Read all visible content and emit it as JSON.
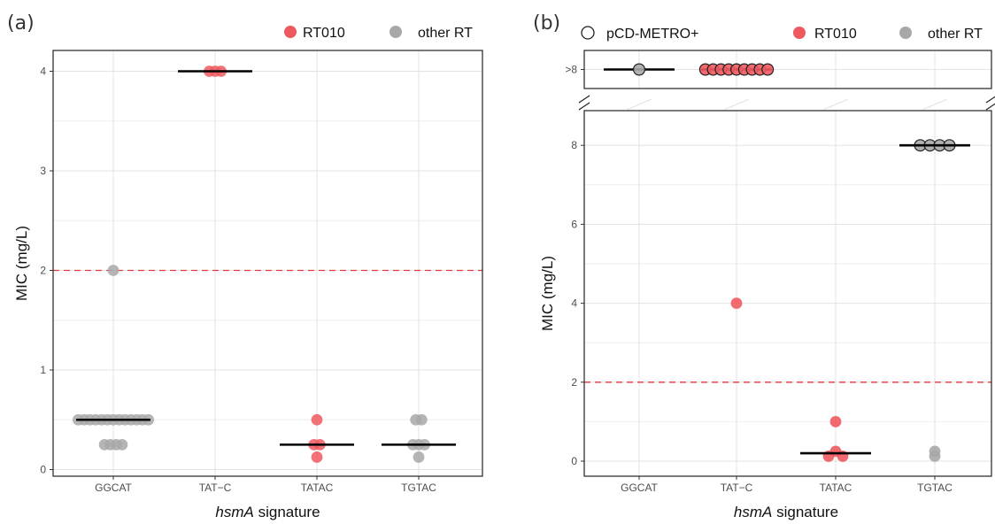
{
  "chart_data": [
    {
      "panel": "(a)",
      "type": "scatter",
      "xlabel_italic": "hsmA",
      "xlabel_rest": " signature",
      "ylabel": "MIC (mg/L)",
      "categories": [
        "GGCAT",
        "TAT−C",
        "TATAC",
        "TGTAC"
      ],
      "yticks": [
        0,
        1,
        2,
        3,
        4
      ],
      "ylim": [
        -0.05,
        4.2
      ],
      "threshold": 2,
      "legend": [
        {
          "label": "RT010",
          "color": "#ee5a60"
        },
        {
          "label": "other RT",
          "color": "#a8a8a8"
        }
      ],
      "medians": [
        0.5,
        4,
        0.25,
        0.25
      ],
      "points": [
        {
          "cat": 0,
          "y": 0.5,
          "group": "other RT"
        },
        {
          "cat": 0,
          "y": 0.5,
          "group": "other RT"
        },
        {
          "cat": 0,
          "y": 0.5,
          "group": "other RT"
        },
        {
          "cat": 0,
          "y": 0.5,
          "group": "other RT"
        },
        {
          "cat": 0,
          "y": 0.5,
          "group": "other RT"
        },
        {
          "cat": 0,
          "y": 0.5,
          "group": "other RT"
        },
        {
          "cat": 0,
          "y": 0.5,
          "group": "other RT"
        },
        {
          "cat": 0,
          "y": 0.5,
          "group": "other RT"
        },
        {
          "cat": 0,
          "y": 0.5,
          "group": "other RT"
        },
        {
          "cat": 0,
          "y": 0.5,
          "group": "other RT"
        },
        {
          "cat": 0,
          "y": 0.5,
          "group": "other RT"
        },
        {
          "cat": 0,
          "y": 0.5,
          "group": "other RT"
        },
        {
          "cat": 0,
          "y": 0.5,
          "group": "other RT"
        },
        {
          "cat": 0,
          "y": 0.25,
          "group": "other RT"
        },
        {
          "cat": 0,
          "y": 0.25,
          "group": "other RT"
        },
        {
          "cat": 0,
          "y": 0.25,
          "group": "other RT"
        },
        {
          "cat": 0,
          "y": 0.25,
          "group": "other RT"
        },
        {
          "cat": 0,
          "y": 2,
          "group": "other RT"
        },
        {
          "cat": 1,
          "y": 4,
          "group": "RT010"
        },
        {
          "cat": 1,
          "y": 4,
          "group": "RT010"
        },
        {
          "cat": 1,
          "y": 4,
          "group": "RT010"
        },
        {
          "cat": 2,
          "y": 0.5,
          "group": "RT010"
        },
        {
          "cat": 2,
          "y": 0.25,
          "group": "RT010"
        },
        {
          "cat": 2,
          "y": 0.25,
          "group": "RT010"
        },
        {
          "cat": 2,
          "y": 0.125,
          "group": "RT010"
        },
        {
          "cat": 3,
          "y": 0.5,
          "group": "other RT"
        },
        {
          "cat": 3,
          "y": 0.5,
          "group": "other RT"
        },
        {
          "cat": 3,
          "y": 0.25,
          "group": "other RT"
        },
        {
          "cat": 3,
          "y": 0.25,
          "group": "other RT"
        },
        {
          "cat": 3,
          "y": 0.25,
          "group": "other RT"
        },
        {
          "cat": 3,
          "y": 0.125,
          "group": "other RT"
        }
      ]
    },
    {
      "panel": "(b)",
      "type": "scatter",
      "xlabel_italic": "hsmA",
      "xlabel_rest": " signature",
      "ylabel": "MIC (mg/L)",
      "categories": [
        "GGCAT",
        "TAT−C",
        "TATAC",
        "TGTAC"
      ],
      "yticks": [
        0,
        2,
        4,
        6,
        8
      ],
      "ylim": [
        -0.3,
        8.8
      ],
      "broken_axis_top_label": ">8",
      "threshold": 2,
      "legend": [
        {
          "label": "pCD-METRO+",
          "color": "#ffffff",
          "outline": "#222222"
        },
        {
          "label": "RT010",
          "color": "#ee5a60"
        },
        {
          "label": "other RT",
          "color": "#a8a8a8"
        }
      ],
      "top_medians": [
        ">8",
        ">8"
      ],
      "medians": [
        null,
        null,
        0.2,
        8
      ],
      "top_points": [
        {
          "cat": 0,
          "group": "other RT",
          "metro": true
        },
        {
          "cat": 1,
          "group": "RT010",
          "metro": true
        },
        {
          "cat": 1,
          "group": "RT010",
          "metro": true
        },
        {
          "cat": 1,
          "group": "RT010",
          "metro": true
        },
        {
          "cat": 1,
          "group": "RT010",
          "metro": true
        },
        {
          "cat": 1,
          "group": "RT010",
          "metro": true
        },
        {
          "cat": 1,
          "group": "RT010",
          "metro": true
        },
        {
          "cat": 1,
          "group": "RT010",
          "metro": true
        },
        {
          "cat": 1,
          "group": "RT010",
          "metro": true
        },
        {
          "cat": 1,
          "group": "RT010",
          "metro": true
        }
      ],
      "points": [
        {
          "cat": 1,
          "y": 4,
          "group": "RT010"
        },
        {
          "cat": 2,
          "y": 1.0,
          "group": "RT010"
        },
        {
          "cat": 2,
          "y": 0.25,
          "group": "RT010"
        },
        {
          "cat": 2,
          "y": 0.125,
          "group": "RT010"
        },
        {
          "cat": 2,
          "y": 0.125,
          "group": "RT010"
        },
        {
          "cat": 3,
          "y": 8,
          "group": "other RT",
          "metro": true
        },
        {
          "cat": 3,
          "y": 8,
          "group": "other RT",
          "metro": true
        },
        {
          "cat": 3,
          "y": 8,
          "group": "other RT",
          "metro": true
        },
        {
          "cat": 3,
          "y": 8,
          "group": "other RT",
          "metro": true
        },
        {
          "cat": 3,
          "y": 0.25,
          "group": "other RT"
        },
        {
          "cat": 3,
          "y": 0.125,
          "group": "other RT"
        }
      ]
    }
  ]
}
